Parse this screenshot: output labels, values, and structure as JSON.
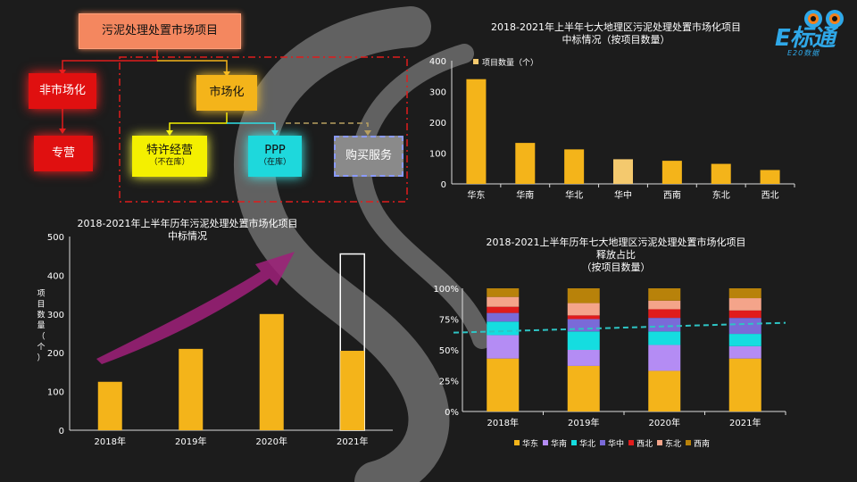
{
  "flow": {
    "root": "污泥处理处置市场项目",
    "non_market": "非市场化",
    "market": "市场化",
    "self_run": "专营",
    "franchise": "特许经营",
    "franchise_sub": "（不在库）",
    "ppp": "PPP",
    "ppp_sub": "（在库）",
    "purchase": "购买服务"
  },
  "logo": {
    "main": "E标通",
    "sub": "E20数据"
  },
  "charts": [
    {
      "id": "region-bar",
      "type": "bar",
      "title": "2018-2021年上半年七大地理区污泥处理处置市场化项目\n中标情况（按项目数量）",
      "legend": "项目数量（个）",
      "categories": [
        "华东",
        "华南",
        "华北",
        "华中",
        "西南",
        "东北",
        "西北"
      ],
      "values": [
        340,
        133,
        112,
        80,
        75,
        65,
        45
      ],
      "ylim": [
        0,
        400
      ],
      "yticks": [
        0,
        100,
        200,
        300,
        400
      ],
      "colors": [
        "#f4b41a",
        "#f4b41a",
        "#f4b41a",
        "#f4c96e",
        "#f4b41a",
        "#f4b41a",
        "#f4b41a"
      ]
    },
    {
      "id": "year-bar",
      "type": "bar",
      "title": "2018-2021年上半年历年污泥处理处置市场化项目\n中标情况",
      "ylabel": "项目数量（个）",
      "categories": [
        "2018年",
        "2019年",
        "2020年",
        "2021年"
      ],
      "values": [
        125,
        210,
        300,
        205
      ],
      "projected": 455,
      "ylim": [
        0,
        500
      ],
      "yticks": [
        0,
        100,
        200,
        300,
        400,
        500
      ]
    },
    {
      "id": "share-stacked",
      "type": "bar",
      "title": "2018-2021上半年历年七大地理区污泥处理处置市场化项目\n释放占比\n（按项目数量）",
      "categories": [
        "2018年",
        "2019年",
        "2020年",
        "2021年"
      ],
      "ylim": [
        0,
        100
      ],
      "yticks": [
        "0%",
        "25%",
        "50%",
        "75%",
        "100%"
      ],
      "reference_line": 68,
      "series": [
        {
          "name": "华东",
          "color": "#f4b41a",
          "values": [
            43,
            37,
            33,
            43
          ]
        },
        {
          "name": "华南",
          "color": "#b48cf4",
          "values": [
            19,
            13,
            21,
            10
          ]
        },
        {
          "name": "华北",
          "color": "#15dde0",
          "values": [
            11,
            15,
            11,
            10
          ]
        },
        {
          "name": "华中",
          "color": "#7a6ad8",
          "values": [
            7,
            10,
            11,
            13
          ]
        },
        {
          "name": "西北",
          "color": "#e01c1c",
          "values": [
            5,
            3,
            7,
            6
          ]
        },
        {
          "name": "东北",
          "color": "#f4a48a",
          "values": [
            8,
            10,
            7,
            10
          ]
        },
        {
          "name": "西南",
          "color": "#b8820a",
          "values": [
            7,
            12,
            10,
            8
          ]
        }
      ]
    }
  ]
}
